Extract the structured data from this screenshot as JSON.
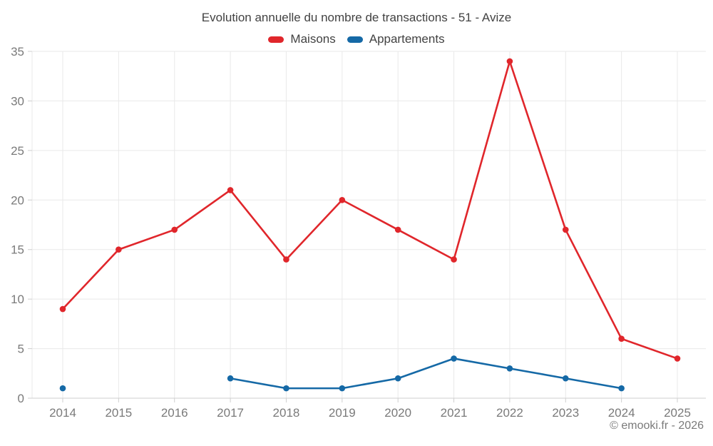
{
  "title": "Evolution annuelle du nombre de transactions - 51 - Avize",
  "attribution": "© emooki.fr - 2026",
  "colors": {
    "maisons": "#e0262b",
    "appartements": "#1569a6",
    "grid": "#e9e9e9",
    "axis": "#cfcfcf",
    "tick_label": "#7a7a7a",
    "title_text": "#424242"
  },
  "chart_data": {
    "type": "line",
    "title": "Evolution annuelle du nombre de transactions - 51 - Avize",
    "categories": [
      "2014",
      "2015",
      "2016",
      "2017",
      "2018",
      "2019",
      "2020",
      "2021",
      "2022",
      "2023",
      "2024",
      "2025"
    ],
    "series": [
      {
        "name": "Maisons",
        "color": "#e0262b",
        "values": [
          9,
          15,
          17,
          21,
          14,
          20,
          17,
          14,
          34,
          17,
          6,
          4
        ]
      },
      {
        "name": "Appartements",
        "color": "#1569a6",
        "values": [
          1,
          null,
          null,
          2,
          1,
          1,
          2,
          4,
          3,
          2,
          1,
          null
        ]
      }
    ],
    "xlabel": "",
    "ylabel": "",
    "ylim": [
      0,
      35
    ],
    "ytick_step": 5,
    "yticks": [
      0,
      5,
      10,
      15,
      20,
      25,
      30,
      35
    ],
    "grid": true,
    "legend_position": "top",
    "markers": true
  }
}
